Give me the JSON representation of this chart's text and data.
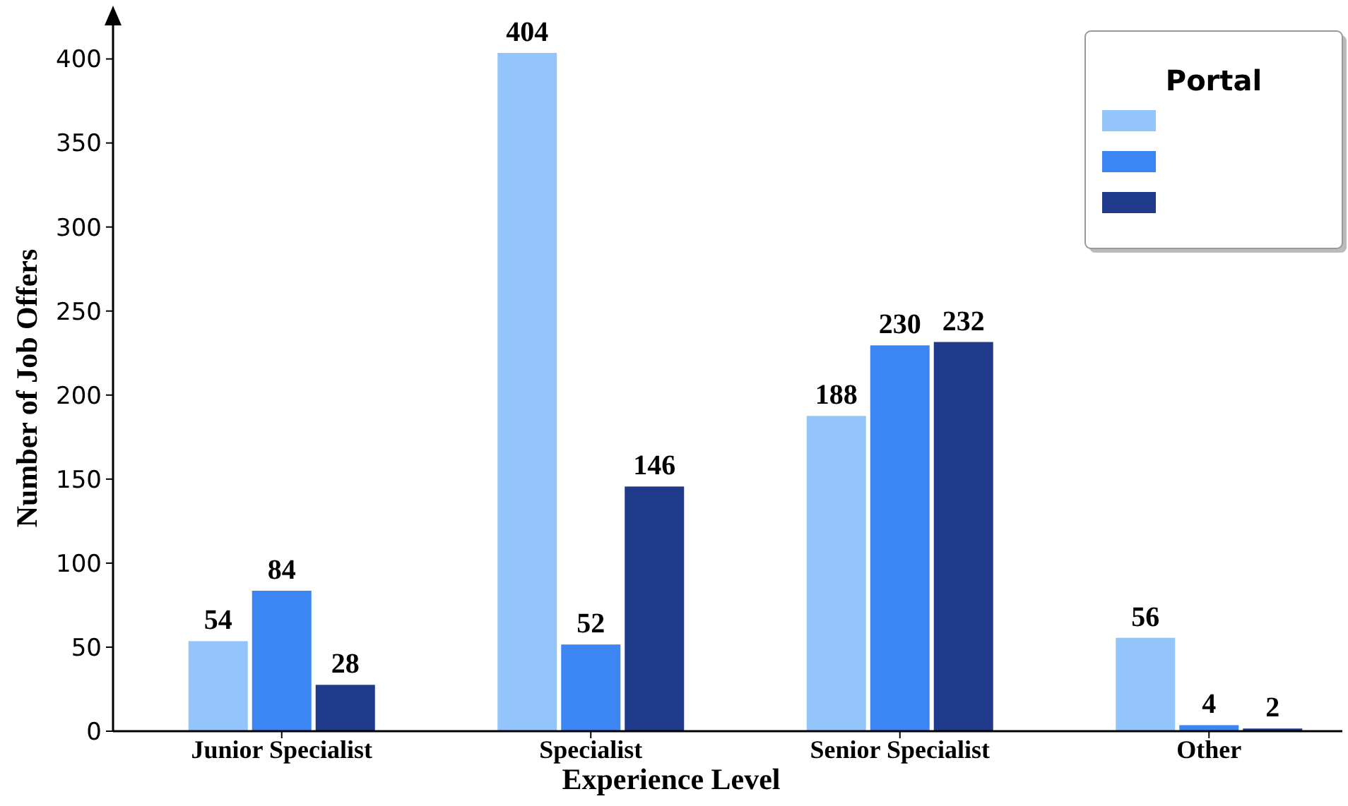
{
  "chart_data": {
    "type": "bar",
    "xlabel": "Experience Level",
    "ylabel": "Number of Job Offers",
    "legend_title": "Portal",
    "data_labels": true,
    "grid": false,
    "categories": [
      "Junior Specialist",
      "Specialist",
      "Senior Specialist",
      "Other"
    ],
    "ylim": [
      0,
      425
    ],
    "yticks": [
      0,
      50,
      100,
      150,
      200,
      250,
      300,
      350,
      400
    ],
    "series": [
      {
        "color": "#93c5fb",
        "values": [
          54,
          404,
          188,
          56
        ]
      },
      {
        "color": "#3b86f2",
        "values": [
          84,
          52,
          230,
          4
        ]
      },
      {
        "color": "#1f3a8a",
        "values": [
          28,
          146,
          232,
          2
        ]
      }
    ]
  }
}
